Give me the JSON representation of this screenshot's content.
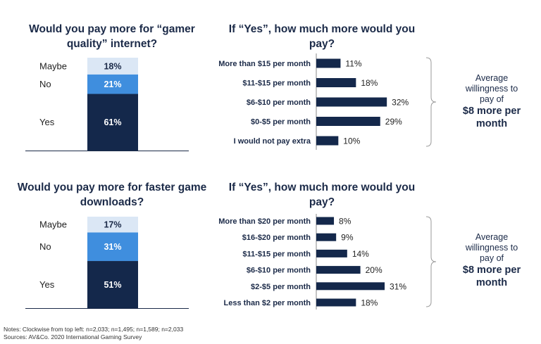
{
  "colors": {
    "dark": "#14284b",
    "mid": "#3f8ede",
    "light": "#dbe7f5",
    "text": "#1b2a48"
  },
  "chart_data": [
    {
      "type": "bar",
      "subtype": "stacked-100",
      "title": "Would you pay more for “gamer quality” internet?",
      "categories": [
        "Yes",
        "No",
        "Maybe"
      ],
      "values": [
        61,
        21,
        18
      ],
      "value_labels": [
        "61%",
        "21%",
        "18%"
      ],
      "unit": "%"
    },
    {
      "type": "bar",
      "orientation": "horizontal",
      "title": "If “Yes”, how much more would you pay?",
      "categories": [
        "More than $15 per month",
        "$11-$15 per month",
        "$6-$10 per month",
        "$0-$5 per month",
        "I would not pay extra"
      ],
      "values": [
        11,
        18,
        32,
        29,
        10
      ],
      "value_labels": [
        "11%",
        "18%",
        "32%",
        "29%",
        "10%"
      ],
      "unit": "%",
      "annotation": {
        "lines": [
          "Average",
          "willingness to",
          "pay of"
        ],
        "emphasis": [
          "$8 more per",
          "month"
        ]
      }
    },
    {
      "type": "bar",
      "subtype": "stacked-100",
      "title": "Would you pay more for faster game downloads?",
      "categories": [
        "Yes",
        "No",
        "Maybe"
      ],
      "values": [
        51,
        31,
        17
      ],
      "value_labels": [
        "51%",
        "31%",
        "17%"
      ],
      "unit": "%"
    },
    {
      "type": "bar",
      "orientation": "horizontal",
      "title": "If “Yes”, how much more would you pay?",
      "categories": [
        "More than $20 per month",
        "$16-$20 per month",
        "$11-$15 per month",
        "$6-$10 per month",
        "$2-$5 per month",
        "Less than $2 per month"
      ],
      "values": [
        8,
        9,
        14,
        20,
        31,
        18
      ],
      "value_labels": [
        "8%",
        "9%",
        "14%",
        "20%",
        "31%",
        "18%"
      ],
      "unit": "%",
      "annotation": {
        "lines": [
          "Average",
          "willingness to",
          "pay of"
        ],
        "emphasis": [
          "$8 more per",
          "month"
        ]
      }
    }
  ],
  "notes": {
    "line1": "Notes: Clockwise from top left: n=2,033; n=1,495; n=1,589; n=2,033",
    "line2": "Sources: AV&Co. 2020 International Gaming Survey"
  }
}
